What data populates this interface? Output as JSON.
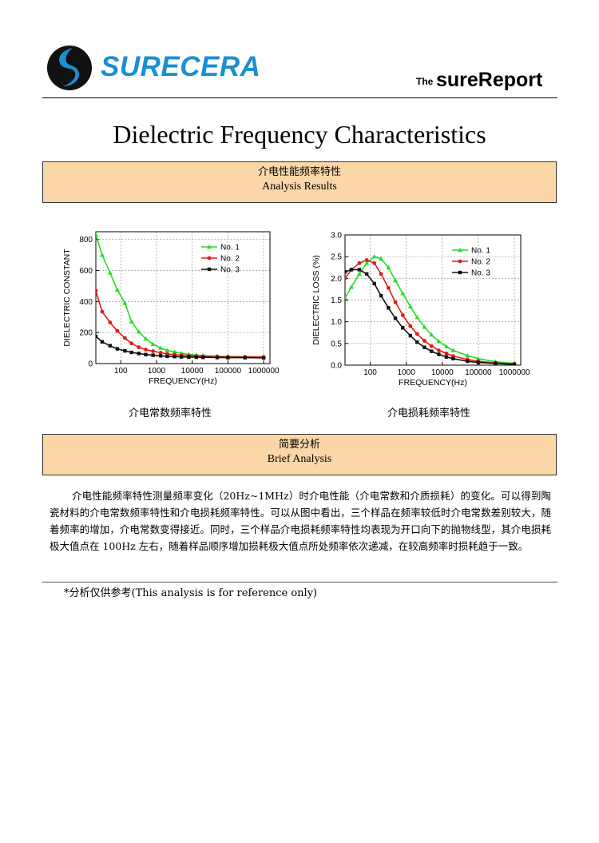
{
  "header": {
    "logo_text": "SURECERA",
    "brand_prefix": "The",
    "brand_name": "sureReport"
  },
  "page_title": "Dielectric Frequency Characteristics",
  "section1": {
    "title_cn": "介电性能频率特性",
    "title_en": "Analysis Results"
  },
  "section2": {
    "title_cn": "简要分析",
    "title_en": "Brief Analysis"
  },
  "captions": {
    "left": "介电常数频率特性",
    "right": "介电损耗频率特性"
  },
  "analysis_text": "介电性能频率特性测量频率变化（20Hz~1MHz）时介电性能（介电常数和介质损耗）的变化。可以得到陶瓷材料的介电常数频率特性和介电损耗频率特性。可以从图中看出，三个样品在频率较低时介电常数差别较大，随着频率的增加，介电常数变得接近。同时，三个样品介电损耗频率特性均表现为开口向下的抛物线型，其介电损耗极大值点在 100Hz 左右，随着样品顺序增加损耗极大值点所处频率依次递减，在较高频率时损耗趋于一致。",
  "footnote": "*分析仅供参考(This analysis is for reference only)",
  "colors": {
    "no1": "#22dd22",
    "no2": "#e21a1a",
    "no3": "#111111",
    "section_bg": "#fbd7a7",
    "logo": "#1a8fd2"
  },
  "chart_data": [
    {
      "type": "line",
      "xlabel": "FREQUENCY(Hz)",
      "ylabel": "DIELECTRIC CONSTANT",
      "x_scale": "log",
      "xlim": [
        20,
        1500000
      ],
      "ylim": [
        0,
        850
      ],
      "x_ticks": [
        "100",
        "1000",
        "10000",
        "100000",
        "1000000"
      ],
      "y_ticks": [
        "0",
        "200",
        "400",
        "600",
        "800"
      ],
      "grid": true,
      "legend": "top-right",
      "x": [
        20,
        30,
        50,
        80,
        130,
        200,
        320,
        500,
        800,
        1300,
        2000,
        3200,
        5000,
        8000,
        13000,
        20000,
        50000,
        100000,
        300000,
        1000000
      ],
      "series": [
        {
          "name": "No. 1",
          "marker": "triangle",
          "values": [
            830,
            700,
            585,
            475,
            390,
            270,
            205,
            160,
            125,
            100,
            85,
            75,
            66,
            60,
            55,
            52,
            48,
            46,
            45,
            44
          ]
        },
        {
          "name": "No. 2",
          "marker": "circle",
          "values": [
            470,
            335,
            265,
            210,
            165,
            130,
            105,
            90,
            80,
            70,
            62,
            57,
            54,
            51,
            48,
            46,
            44,
            43,
            42,
            42
          ]
        },
        {
          "name": "No. 3",
          "marker": "square",
          "values": [
            175,
            140,
            115,
            95,
            82,
            72,
            65,
            58,
            54,
            50,
            47,
            45,
            43,
            42,
            41,
            40,
            39,
            38,
            38,
            37
          ]
        }
      ]
    },
    {
      "type": "line",
      "xlabel": "FREQUENCY(Hz)",
      "ylabel": "DIELECTRIC LOSS (%)",
      "x_scale": "log",
      "xlim": [
        20,
        1500000
      ],
      "ylim": [
        0,
        3.0
      ],
      "x_ticks": [
        "100",
        "1000",
        "10000",
        "100000",
        "1000000"
      ],
      "y_ticks": [
        "0.0",
        "0.5",
        "1.0",
        "1.5",
        "2.0",
        "2.5",
        "3.0"
      ],
      "grid": true,
      "legend": "top-right",
      "x": [
        20,
        30,
        50,
        80,
        130,
        200,
        320,
        500,
        800,
        1300,
        2000,
        3200,
        5000,
        8000,
        13000,
        20000,
        50000,
        100000,
        300000,
        1000000
      ],
      "series": [
        {
          "name": "No. 1",
          "marker": "triangle",
          "values": [
            1.55,
            1.8,
            2.1,
            2.35,
            2.5,
            2.45,
            2.25,
            1.95,
            1.65,
            1.35,
            1.1,
            0.88,
            0.7,
            0.55,
            0.43,
            0.34,
            0.22,
            0.15,
            0.08,
            0.04
          ]
        },
        {
          "name": "No. 2",
          "marker": "circle",
          "values": [
            2.0,
            2.2,
            2.35,
            2.42,
            2.35,
            2.1,
            1.78,
            1.45,
            1.15,
            0.9,
            0.72,
            0.56,
            0.44,
            0.34,
            0.27,
            0.21,
            0.13,
            0.09,
            0.05,
            0.03
          ]
        },
        {
          "name": "No. 3",
          "marker": "square",
          "values": [
            2.15,
            2.2,
            2.2,
            2.1,
            1.88,
            1.6,
            1.32,
            1.08,
            0.86,
            0.68,
            0.53,
            0.41,
            0.32,
            0.25,
            0.19,
            0.15,
            0.09,
            0.06,
            0.04,
            0.02
          ]
        }
      ]
    }
  ]
}
